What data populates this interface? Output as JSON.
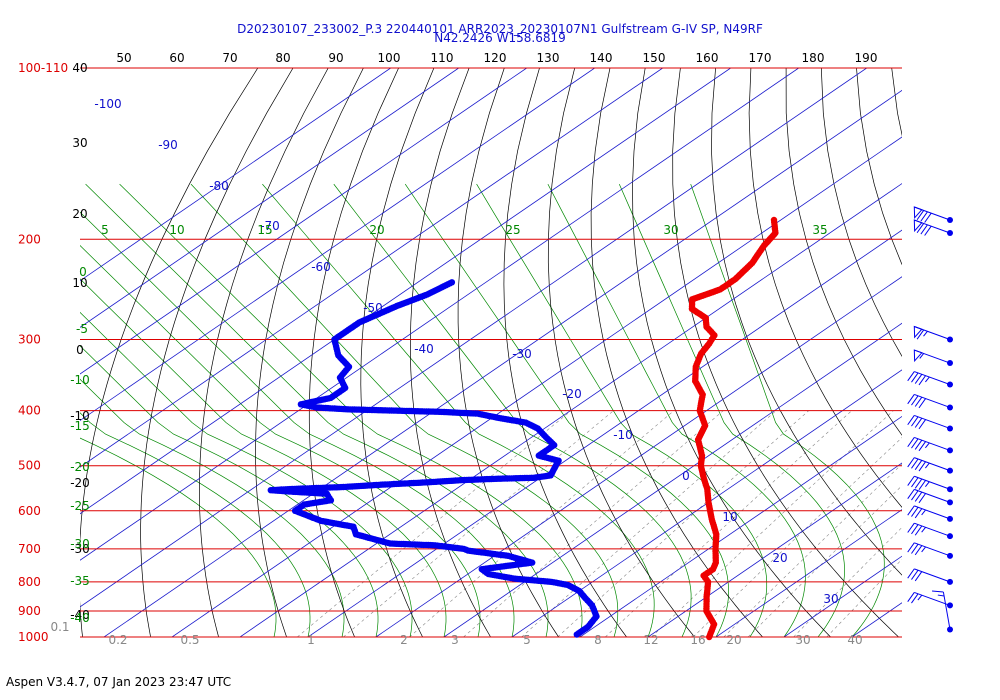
{
  "header": {
    "title_line1": "D20230107_233002_P.3 220440101 ARR2023_20230107N1 Gulfstream G-IV SP, N49RF",
    "title_line2": "N42.2426 W158.6819"
  },
  "footer": {
    "text": "Aspen V3.4.7, 07 Jan 2023  23:47 UTC"
  },
  "colors": {
    "pressure_lines": "#dd0000",
    "isotherms": "#1a1acc",
    "dry_adiabats": "#000000",
    "moist_adiabats": "#008800",
    "mixing_ratio": "#888888",
    "temperature_profile": "#ee0000",
    "dewpoint_profile": "#0000ee"
  },
  "chart_data": {
    "type": "skew-t log-p sounding",
    "pressure_axis": {
      "levels_hpa": [
        100,
        200,
        300,
        400,
        500,
        600,
        700,
        800,
        900,
        1000
      ],
      "labels": [
        "100-110",
        "200",
        "300",
        "400",
        "500",
        "600",
        "700",
        "800",
        "900",
        "1000"
      ],
      "range_hpa": [
        100,
        1000
      ],
      "scale": "log"
    },
    "top_theta_labels": [
      "50",
      "60",
      "70",
      "80",
      "90",
      "100",
      "110",
      "120",
      "130",
      "140",
      "150",
      "160",
      "170",
      "180",
      "190"
    ],
    "altitude_labels": [
      "40",
      "30",
      "20",
      "10",
      "0",
      "-10",
      "-20",
      "-30",
      "-40"
    ],
    "isotherm_labels": [
      "-100",
      "-90",
      "-80",
      "-70",
      "-60",
      "-50",
      "-40",
      "-30",
      "-20",
      "-10",
      "0",
      "10",
      "20",
      "30"
    ],
    "mixing_ratio_labels": [
      "0.1",
      "0.2",
      "0.5",
      "1",
      "2",
      "3",
      "5",
      "8",
      "12",
      "16",
      "20",
      "30",
      "40"
    ],
    "wetbulb_labels": [
      "0",
      "-5",
      "-10",
      "-15",
      "-20",
      "-25",
      "-30",
      "-35",
      "-40"
    ],
    "theta_e_labels": [
      "5",
      "10",
      "15",
      "20",
      "25",
      "30",
      "35"
    ],
    "temperature_c": [
      {
        "p": 185,
        "t": -61
      },
      {
        "p": 195,
        "t": -58
      },
      {
        "p": 205,
        "t": -57
      },
      {
        "p": 220,
        "t": -55
      },
      {
        "p": 235,
        "t": -54
      },
      {
        "p": 245,
        "t": -54
      },
      {
        "p": 255,
        "t": -56
      },
      {
        "p": 265,
        "t": -54
      },
      {
        "p": 275,
        "t": -50
      },
      {
        "p": 285,
        "t": -48
      },
      {
        "p": 295,
        "t": -45
      },
      {
        "p": 305,
        "t": -44
      },
      {
        "p": 318,
        "t": -43
      },
      {
        "p": 335,
        "t": -41
      },
      {
        "p": 355,
        "t": -38
      },
      {
        "p": 375,
        "t": -34
      },
      {
        "p": 400,
        "t": -31
      },
      {
        "p": 425,
        "t": -27
      },
      {
        "p": 450,
        "t": -25
      },
      {
        "p": 480,
        "t": -21
      },
      {
        "p": 500,
        "t": -19
      },
      {
        "p": 525,
        "t": -16
      },
      {
        "p": 550,
        "t": -13
      },
      {
        "p": 580,
        "t": -10
      },
      {
        "p": 620,
        "t": -6
      },
      {
        "p": 660,
        "t": -2
      },
      {
        "p": 700,
        "t": 1
      },
      {
        "p": 740,
        "t": 4
      },
      {
        "p": 760,
        "t": 5
      },
      {
        "p": 780,
        "t": 5
      },
      {
        "p": 800,
        "t": 7
      },
      {
        "p": 850,
        "t": 10
      },
      {
        "p": 900,
        "t": 13
      },
      {
        "p": 950,
        "t": 17
      },
      {
        "p": 1000,
        "t": 19
      }
    ],
    "dewpoint_c": [
      {
        "p": 238,
        "t": -95
      },
      {
        "p": 250,
        "t": -96
      },
      {
        "p": 262,
        "t": -98
      },
      {
        "p": 280,
        "t": -100
      },
      {
        "p": 300,
        "t": -100
      },
      {
        "p": 320,
        "t": -96
      },
      {
        "p": 335,
        "t": -92
      },
      {
        "p": 350,
        "t": -91
      },
      {
        "p": 365,
        "t": -88
      },
      {
        "p": 380,
        "t": -88
      },
      {
        "p": 390,
        "t": -91
      },
      {
        "p": 395,
        "t": -88
      },
      {
        "p": 398,
        "t": -83
      },
      {
        "p": 400,
        "t": -76
      },
      {
        "p": 402,
        "t": -69
      },
      {
        "p": 405,
        "t": -63
      },
      {
        "p": 412,
        "t": -59
      },
      {
        "p": 420,
        "t": -54
      },
      {
        "p": 430,
        "t": -51
      },
      {
        "p": 445,
        "t": -48
      },
      {
        "p": 460,
        "t": -45
      },
      {
        "p": 480,
        "t": -45
      },
      {
        "p": 490,
        "t": -41
      },
      {
        "p": 505,
        "t": -40
      },
      {
        "p": 520,
        "t": -39
      },
      {
        "p": 525,
        "t": -41
      },
      {
        "p": 527,
        "t": -46
      },
      {
        "p": 530,
        "t": -51
      },
      {
        "p": 535,
        "t": -56
      },
      {
        "p": 540,
        "t": -62
      },
      {
        "p": 545,
        "t": -67
      },
      {
        "p": 548,
        "t": -72
      },
      {
        "p": 550,
        "t": -75
      },
      {
        "p": 552,
        "t": -77
      },
      {
        "p": 555,
        "t": -74
      },
      {
        "p": 560,
        "t": -68
      },
      {
        "p": 575,
        "t": -66
      },
      {
        "p": 585,
        "t": -69
      },
      {
        "p": 600,
        "t": -69
      },
      {
        "p": 625,
        "t": -63
      },
      {
        "p": 640,
        "t": -57
      },
      {
        "p": 660,
        "t": -55
      },
      {
        "p": 685,
        "t": -48
      },
      {
        "p": 690,
        "t": -41
      },
      {
        "p": 700,
        "t": -36
      },
      {
        "p": 705,
        "t": -35
      },
      {
        "p": 720,
        "t": -28
      },
      {
        "p": 740,
        "t": -23
      },
      {
        "p": 760,
        "t": -29
      },
      {
        "p": 775,
        "t": -27
      },
      {
        "p": 790,
        "t": -22
      },
      {
        "p": 800,
        "t": -16
      },
      {
        "p": 810,
        "t": -13
      },
      {
        "p": 830,
        "t": -10
      },
      {
        "p": 850,
        "t": -8
      },
      {
        "p": 880,
        "t": -5
      },
      {
        "p": 920,
        "t": -2
      },
      {
        "p": 960,
        "t": -1
      },
      {
        "p": 990,
        "t": -1
      }
    ],
    "wind_barbs": [
      {
        "p": 185,
        "flag": "pennant-3",
        "speed_kt": 80
      },
      {
        "p": 195,
        "flag": "pennant-3",
        "speed_kt": 80
      },
      {
        "p": 300,
        "speed_kt": 65
      },
      {
        "p": 330,
        "speed_kt": 55
      },
      {
        "p": 360,
        "speed_kt": 45
      },
      {
        "p": 395,
        "speed_kt": 40
      },
      {
        "p": 430,
        "speed_kt": 40
      },
      {
        "p": 470,
        "speed_kt": 45
      },
      {
        "p": 510,
        "speed_kt": 45
      },
      {
        "p": 550,
        "speed_kt": 45
      },
      {
        "p": 580,
        "speed_kt": 40
      },
      {
        "p": 620,
        "speed_kt": 35
      },
      {
        "p": 665,
        "speed_kt": 35
      },
      {
        "p": 720,
        "speed_kt": 35
      },
      {
        "p": 800,
        "speed_kt": 30
      },
      {
        "p": 880,
        "speed_kt": 25
      },
      {
        "p": 970,
        "speed_kt": 15
      }
    ]
  }
}
